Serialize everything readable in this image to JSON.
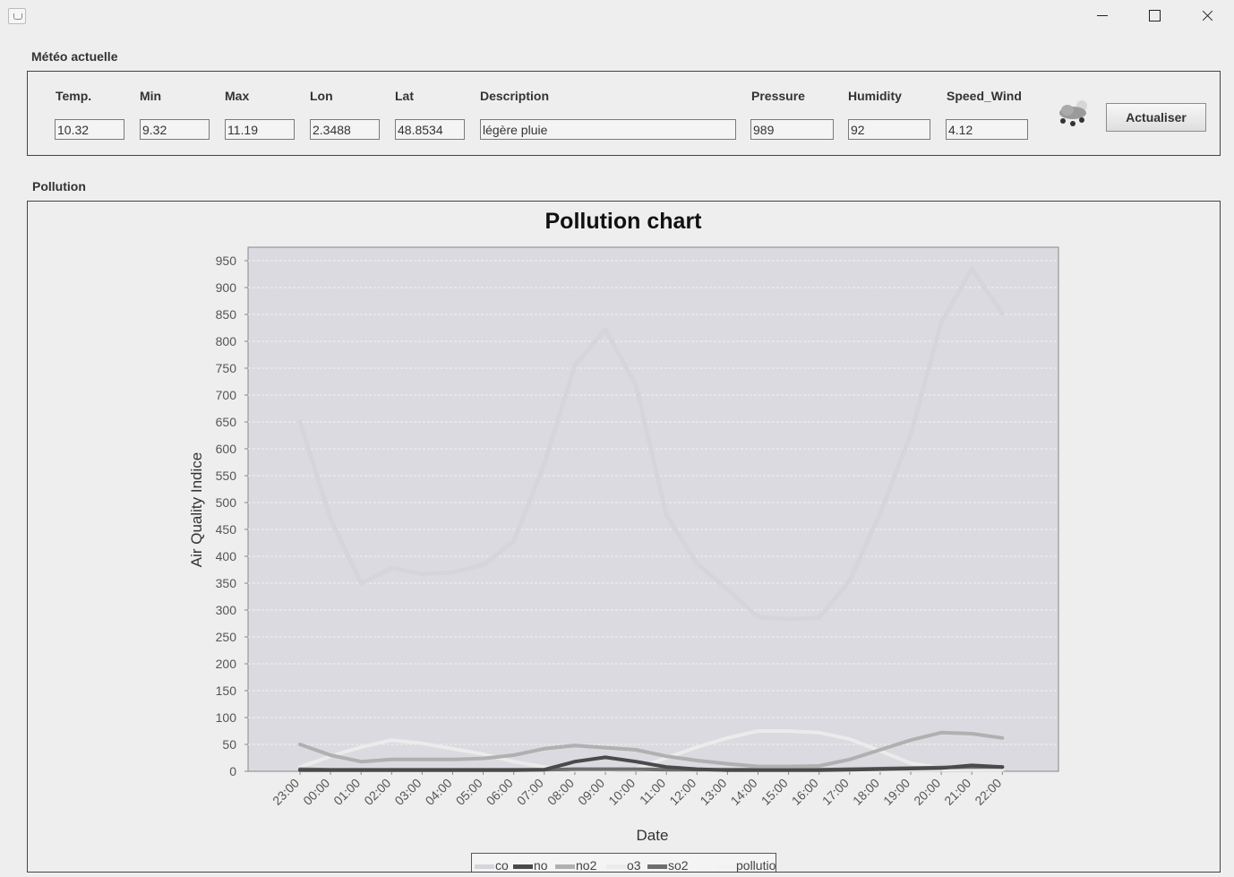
{
  "window": {
    "title": "",
    "minimize_icon": "minimize-icon",
    "maximize_icon": "maximize-icon",
    "close_icon": "close-icon"
  },
  "weather": {
    "section_title": "Météo actuelle",
    "fields": [
      {
        "label": "Temp.",
        "value": "10.32"
      },
      {
        "label": "Min",
        "value": "9.32"
      },
      {
        "label": "Max",
        "value": "11.19"
      },
      {
        "label": "Lon",
        "value": "2.3488"
      },
      {
        "label": "Lat",
        "value": "48.8534"
      },
      {
        "label": "Description",
        "value": "légère pluie"
      },
      {
        "label": "Pressure",
        "value": "989"
      },
      {
        "label": "Humidity",
        "value": "92"
      },
      {
        "label": "Speed_Wind",
        "value": "4.12"
      }
    ],
    "icon": "light-rain-icon",
    "refresh_label": "Actualiser"
  },
  "pollution": {
    "section_title": "Pollution"
  },
  "chart_data": {
    "type": "line",
    "title": "Pollution chart",
    "xlabel": "Date",
    "ylabel": "Air Quality Indice",
    "x": [
      "23:00",
      "00:00",
      "01:00",
      "02:00",
      "03:00",
      "04:00",
      "05:00",
      "06:00",
      "07:00",
      "08:00",
      "09:00",
      "10:00",
      "11:00",
      "12:00",
      "13:00",
      "14:00",
      "15:00",
      "16:00",
      "17:00",
      "18:00",
      "19:00",
      "20:00",
      "21:00",
      "22:00"
    ],
    "ylim": [
      0,
      975
    ],
    "yticks": [
      0,
      50,
      100,
      150,
      200,
      250,
      300,
      350,
      400,
      450,
      500,
      550,
      600,
      650,
      700,
      750,
      800,
      850,
      900,
      950
    ],
    "grid": true,
    "legend_position": "bottom",
    "series": [
      {
        "name": "co",
        "color": "#d5d5db",
        "values": [
          650,
          470,
          350,
          378,
          367,
          370,
          384,
          428,
          572,
          755,
          822,
          718,
          477,
          387,
          338,
          287,
          283,
          286,
          355,
          480,
          627,
          835,
          935,
          852
        ]
      },
      {
        "name": "no",
        "color": "#4a4a4a",
        "values": [
          2,
          2,
          2,
          2,
          2,
          2,
          2,
          2,
          3,
          18,
          26,
          18,
          8,
          4,
          2,
          2,
          2,
          2,
          3,
          4,
          5,
          6,
          11,
          8
        ]
      },
      {
        "name": "no2",
        "color": "#b0b0b0",
        "values": [
          50,
          30,
          18,
          22,
          22,
          22,
          24,
          30,
          42,
          48,
          44,
          40,
          28,
          20,
          14,
          9,
          9,
          10,
          22,
          40,
          58,
          72,
          70,
          62
        ]
      },
      {
        "name": "o3",
        "color": "#ebebeb",
        "values": [
          8,
          28,
          45,
          58,
          52,
          42,
          32,
          18,
          8,
          2,
          2,
          5,
          25,
          45,
          62,
          75,
          75,
          72,
          60,
          38,
          15,
          6,
          3,
          3
        ]
      },
      {
        "name": "so2",
        "color": "#6e6e6e",
        "values": [
          4,
          3,
          3,
          3,
          3,
          3,
          3,
          3,
          3,
          4,
          4,
          4,
          3,
          3,
          3,
          3,
          3,
          3,
          4,
          5,
          6,
          7,
          8,
          8
        ]
      },
      {
        "name": "pollution",
        "color": "#f2f2f2",
        "values": [
          2,
          2,
          2,
          2,
          2,
          2,
          2,
          2,
          2,
          3,
          3,
          3,
          2,
          2,
          2,
          2,
          2,
          2,
          2,
          2,
          3,
          3,
          3,
          3
        ]
      }
    ]
  }
}
